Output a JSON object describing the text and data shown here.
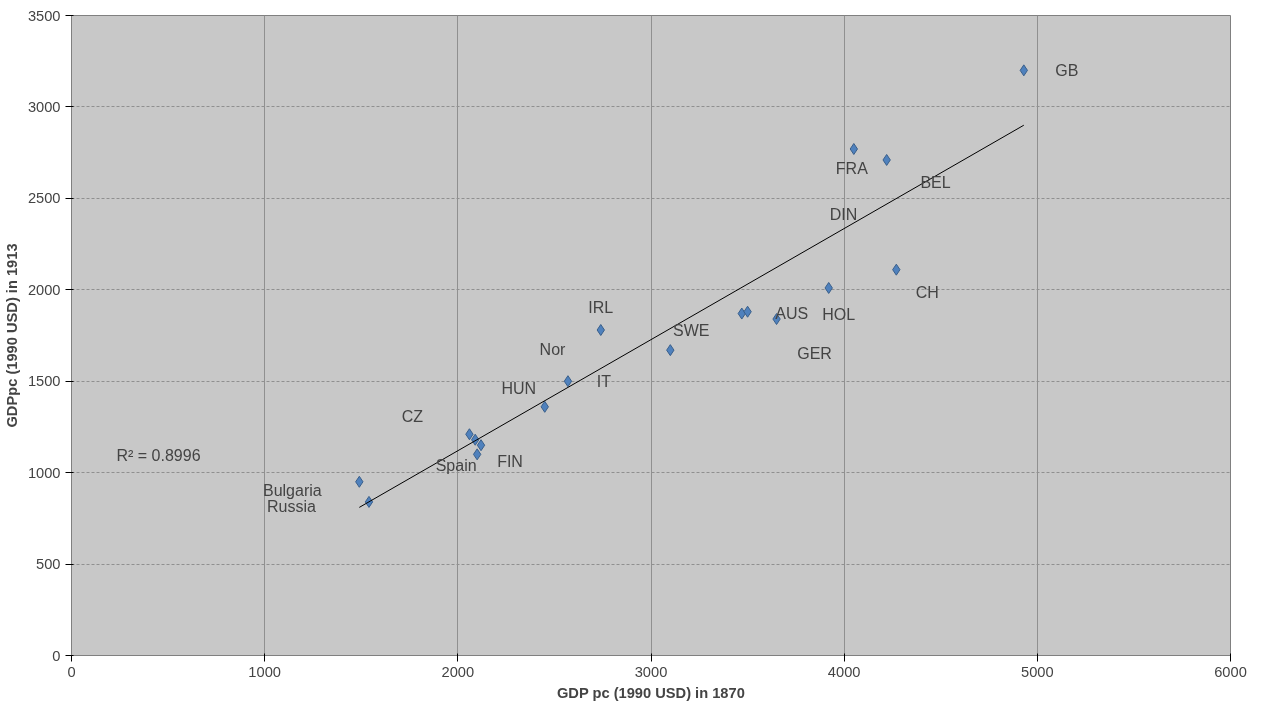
{
  "chart_data": {
    "type": "scatter",
    "xlabel": "GDP pc (1990 USD) in 1870",
    "ylabel": "GDPpc (1990 USD) in 1913",
    "xlim": [
      0,
      6000
    ],
    "xticks": [
      0,
      1000,
      2000,
      3000,
      4000,
      5000,
      6000
    ],
    "ylim": [
      0,
      3500
    ],
    "yticks": [
      0,
      500,
      1000,
      1500,
      2000,
      2500,
      3000,
      3500
    ],
    "grid": true,
    "marker": "diamond",
    "series": [
      {
        "color": "#4f81bd",
        "x": [
          4930,
          4050,
          4220,
          4270,
          3920,
          3470,
          3500,
          3650,
          3100,
          2740,
          2570,
          2450,
          2060,
          2090,
          2120,
          2100,
          1490,
          1540
        ],
        "values": [
          3200,
          2770,
          2710,
          2110,
          2010,
          1870,
          1880,
          1840,
          1670,
          1780,
          1500,
          1360,
          1210,
          1180,
          1150,
          1100,
          950,
          840
        ]
      },
      {
        "type": "line",
        "color": "#000000",
        "marker": "none",
        "line_style": "solid",
        "x": [
          1490,
          4930
        ],
        "values": [
          810,
          2900
        ]
      }
    ],
    "annotations": [
      {
        "text": "GB",
        "x": 4930,
        "y": 3200
      },
      {
        "text": "FRA",
        "x": 4050,
        "y": 2770
      },
      {
        "text": "CH",
        "x": 4270,
        "y": 2110
      },
      {
        "text": "HOL",
        "x": 3920,
        "y": 2010
      },
      {
        "text": "AUS",
        "x": 3470,
        "y": 1870
      },
      {
        "text": "GER",
        "x": 3650,
        "y": 1840
      },
      {
        "text": "SWE",
        "x": 3100,
        "y": 1670
      },
      {
        "text": "IRL",
        "x": 2740,
        "y": 1780
      },
      {
        "text": "HUN",
        "x": 2450,
        "y": 1360
      },
      {
        "text": "IT",
        "x": 2570,
        "y": 1500
      },
      {
        "text": "CZ",
        "x": 2060,
        "y": 1210
      },
      {
        "text": "FIN",
        "x": 2120,
        "y": 1150
      },
      {
        "text": "Spain",
        "x": 2100,
        "y": 1100
      },
      {
        "text": "Bulgaria",
        "x": 1490,
        "y": 950
      },
      "BEL",
      "DIN",
      "Nor",
      "Russia",
      "R² = 0.8996"
    ]
  }
}
